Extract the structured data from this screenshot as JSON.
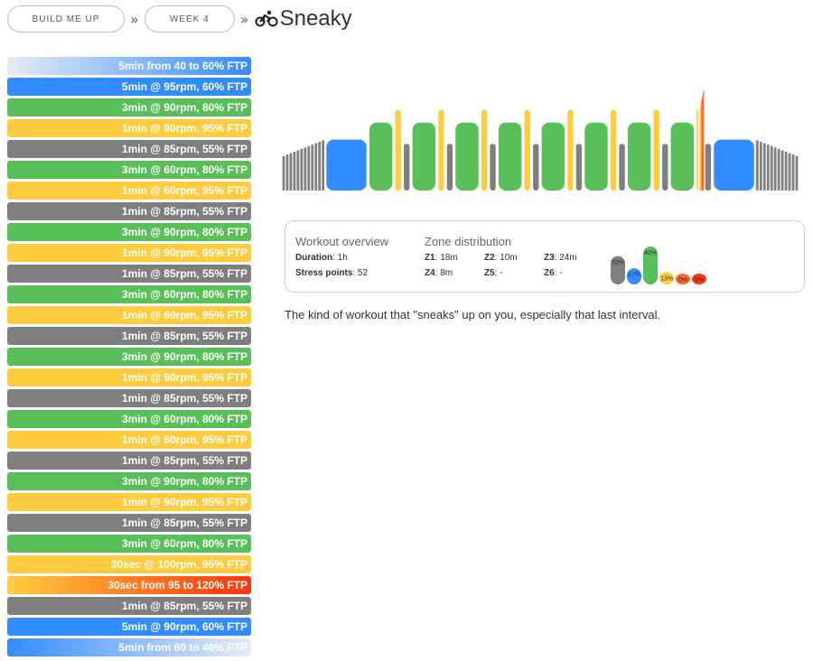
{
  "breadcrumb": {
    "items": [
      "BUILD ME UP",
      "WEEK 4"
    ],
    "separator": "»",
    "title": "Sneaky",
    "title_icon": "bike-icon"
  },
  "zone_colors": {
    "Z1": "#7f7f7f",
    "Z2": "#338cff",
    "Z3": "#59bf59",
    "Z4": "#ffcc3f",
    "Z5": "#ff6633",
    "Z6": "#ff330c"
  },
  "intervals": [
    {
      "label": "5min from 40 to 60% FTP",
      "zone": "ramp-up"
    },
    {
      "label": "5min @ 95rpm, 60% FTP",
      "zone": "z2"
    },
    {
      "label": "3min @ 90rpm, 80% FTP",
      "zone": "z3"
    },
    {
      "label": "1min @ 90rpm, 95% FTP",
      "zone": "z4"
    },
    {
      "label": "1min @ 85rpm, 55% FTP",
      "zone": "z1"
    },
    {
      "label": "3min @ 60rpm, 80% FTP",
      "zone": "z3"
    },
    {
      "label": "1min @ 60rpm, 95% FTP",
      "zone": "z4"
    },
    {
      "label": "1min @ 85rpm, 55% FTP",
      "zone": "z1"
    },
    {
      "label": "3min @ 90rpm, 80% FTP",
      "zone": "z3"
    },
    {
      "label": "1min @ 90rpm, 95% FTP",
      "zone": "z4"
    },
    {
      "label": "1min @ 85rpm, 55% FTP",
      "zone": "z1"
    },
    {
      "label": "3min @ 60rpm, 80% FTP",
      "zone": "z3"
    },
    {
      "label": "1min @ 60rpm, 95% FTP",
      "zone": "z4"
    },
    {
      "label": "1min @ 85rpm, 55% FTP",
      "zone": "z1"
    },
    {
      "label": "3min @ 90rpm, 80% FTP",
      "zone": "z3"
    },
    {
      "label": "1min @ 90rpm, 95% FTP",
      "zone": "z4"
    },
    {
      "label": "1min @ 85rpm, 55% FTP",
      "zone": "z1"
    },
    {
      "label": "3min @ 60rpm, 80% FTP",
      "zone": "z3"
    },
    {
      "label": "1min @ 60rpm, 95% FTP",
      "zone": "z4"
    },
    {
      "label": "1min @ 85rpm, 55% FTP",
      "zone": "z1"
    },
    {
      "label": "3min @ 90rpm, 80% FTP",
      "zone": "z3"
    },
    {
      "label": "1min @ 90rpm, 95% FTP",
      "zone": "z4"
    },
    {
      "label": "1min @ 85rpm, 55% FTP",
      "zone": "z1"
    },
    {
      "label": "3min @ 60rpm, 80% FTP",
      "zone": "z3"
    },
    {
      "label": "30sec @ 100rpm, 95% FTP",
      "zone": "z4"
    },
    {
      "label": "30sec from 95 to 120% FTP",
      "zone": "ramp-z4-z6"
    },
    {
      "label": "1min @ 85rpm, 55% FTP",
      "zone": "z1"
    },
    {
      "label": "5min @ 90rpm, 60% FTP",
      "zone": "z2"
    },
    {
      "label": "5min from 60 to 40% FTP",
      "zone": "ramp-down"
    }
  ],
  "chart_data": {
    "type": "bar",
    "title": "",
    "xlabel": "",
    "ylabel": "",
    "x_units": "seconds",
    "segments": [
      {
        "type": "ramp",
        "duration": 300,
        "from": 40,
        "to": 60
      },
      {
        "type": "steady",
        "duration": 300,
        "power": 60
      },
      {
        "type": "steady",
        "duration": 180,
        "power": 80
      },
      {
        "type": "steady",
        "duration": 60,
        "power": 95
      },
      {
        "type": "steady",
        "duration": 60,
        "power": 55
      },
      {
        "type": "steady",
        "duration": 180,
        "power": 80
      },
      {
        "type": "steady",
        "duration": 60,
        "power": 95
      },
      {
        "type": "steady",
        "duration": 60,
        "power": 55
      },
      {
        "type": "steady",
        "duration": 180,
        "power": 80
      },
      {
        "type": "steady",
        "duration": 60,
        "power": 95
      },
      {
        "type": "steady",
        "duration": 60,
        "power": 55
      },
      {
        "type": "steady",
        "duration": 180,
        "power": 80
      },
      {
        "type": "steady",
        "duration": 60,
        "power": 95
      },
      {
        "type": "steady",
        "duration": 60,
        "power": 55
      },
      {
        "type": "steady",
        "duration": 180,
        "power": 80
      },
      {
        "type": "steady",
        "duration": 60,
        "power": 95
      },
      {
        "type": "steady",
        "duration": 60,
        "power": 55
      },
      {
        "type": "steady",
        "duration": 180,
        "power": 80
      },
      {
        "type": "steady",
        "duration": 60,
        "power": 95
      },
      {
        "type": "steady",
        "duration": 60,
        "power": 55
      },
      {
        "type": "steady",
        "duration": 180,
        "power": 80
      },
      {
        "type": "steady",
        "duration": 60,
        "power": 95
      },
      {
        "type": "steady",
        "duration": 60,
        "power": 55
      },
      {
        "type": "steady",
        "duration": 180,
        "power": 80
      },
      {
        "type": "steady",
        "duration": 30,
        "power": 95
      },
      {
        "type": "ramp",
        "duration": 30,
        "from": 95,
        "to": 120
      },
      {
        "type": "steady",
        "duration": 60,
        "power": 55
      },
      {
        "type": "steady",
        "duration": 300,
        "power": 60
      },
      {
        "type": "ramp",
        "duration": 300,
        "from": 60,
        "to": 40
      }
    ]
  },
  "overview": {
    "heading": "Workout overview",
    "duration_label": "Duration",
    "duration_value": "1h",
    "stress_label": "Stress points",
    "stress_value": "52",
    "zone_heading": "Zone distribution",
    "zones": [
      {
        "label": "Z1",
        "value": "18m"
      },
      {
        "label": "Z2",
        "value": "10m"
      },
      {
        "label": "Z3",
        "value": "24m"
      },
      {
        "label": "Z4",
        "value": "8m"
      },
      {
        "label": "Z5",
        "value": "-"
      },
      {
        "label": "Z6",
        "value": "-"
      }
    ],
    "distribution": [
      {
        "label": "30%",
        "percent": 30,
        "color": "#7f7f7f"
      },
      {
        "label": "17%",
        "percent": 17,
        "color": "#338cff"
      },
      {
        "label": "40%",
        "percent": 40,
        "color": "#59bf59"
      },
      {
        "label": "13%",
        "percent": 13,
        "color": "#ffcc3f"
      },
      {
        "label": "0%",
        "percent": 0,
        "color": "#ff6633"
      },
      {
        "label": "0%",
        "percent": 0,
        "color": "#ff330c"
      }
    ]
  },
  "description": "The kind of workout that \"sneaks\" up on you, especially that last interval."
}
